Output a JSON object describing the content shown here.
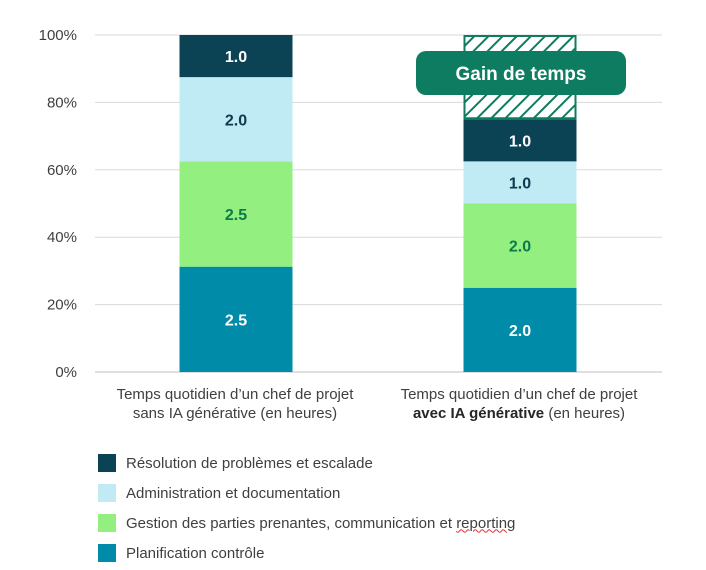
{
  "chart_data": {
    "type": "bar",
    "stacked": "percent",
    "categories": [
      "Temps quotidien d’un chef de projet sans IA générative (en heures)",
      "Temps quotidien d’un chef de projet avec IA générative (en heures)"
    ],
    "series": [
      {
        "name": "Planification  contrôle",
        "color": "#008CA8",
        "values": [
          2.5,
          2.0
        ],
        "labels": [
          "2.5",
          "2.0"
        ],
        "label_color": "#ffffff"
      },
      {
        "name": "Gestion des parties prenantes, communication et reporting",
        "color": "#93EF7F",
        "values": [
          2.5,
          2.0
        ],
        "labels": [
          "2.5",
          "2.0"
        ],
        "label_color": "#0a7a4a"
      },
      {
        "name": "Administration et documentation",
        "color": "#C0EAF4",
        "values": [
          2.0,
          1.0
        ],
        "labels": [
          "2.0",
          "1.0"
        ],
        "label_color": "#0d3a4d"
      },
      {
        "name": "Résolution de problèmes et escalade",
        "color": "#0B4254",
        "values": [
          1.0,
          1.0
        ],
        "labels": [
          "1.0",
          "1.0"
        ],
        "label_color": "#ffffff"
      }
    ],
    "totals": [
      8.0,
      6.0
    ],
    "reference_total": 8.0,
    "time_saved_hours": 2.0,
    "time_saved_label": "Gain de temps",
    "time_saved_color": "#0E7C60",
    "yticks": [
      "0%",
      "20%",
      "40%",
      "60%",
      "80%",
      "100%"
    ],
    "ylim": [
      0,
      100
    ],
    "grid": true,
    "legend_position": "bottom-left"
  },
  "xcats": {
    "cat1_line1": "Temps quotidien d’un chef de projet",
    "cat1_line2": "sans IA générative (en heures)",
    "cat2_line1": "Temps quotidien d’un chef de projet",
    "cat2_bold": "avec IA générative",
    "cat2_rest": " (en heures)"
  },
  "legend": {
    "items": [
      {
        "label": "Résolution de problèmes et escalade",
        "color": "#0B4254"
      },
      {
        "label": "Administration et documentation",
        "color": "#C0EAF4"
      },
      {
        "label_a": "Gestion des parties prenantes, communication et ",
        "label_b": "reporting",
        "color": "#93EF7F"
      },
      {
        "label": "Planification  contrôle",
        "color": "#008CA8"
      }
    ]
  }
}
